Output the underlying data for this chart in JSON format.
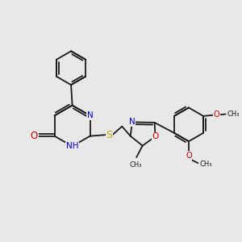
{
  "background_color": "#e8e8e8",
  "bond_color": "#1a1a1a",
  "atom_colors": {
    "N": "#0000ee",
    "O": "#cc0000",
    "S": "#bbaa00",
    "C": "#1a1a1a"
  },
  "font_size": 6.5,
  "fig_width": 3.0,
  "fig_height": 3.0,
  "dpi": 100,
  "xlim": [
    0,
    10
  ],
  "ylim": [
    0,
    10
  ]
}
